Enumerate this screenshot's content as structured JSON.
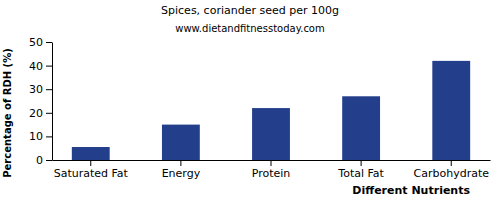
{
  "chart_data": {
    "type": "bar",
    "title": "Spices, coriander seed per 100g",
    "subtitle": "www.dietandfitnesstoday.com",
    "xlabel": "Different Nutrients",
    "ylabel": "Percentage of RDH (%)",
    "categories": [
      "Saturated Fat",
      "Energy",
      "Protein",
      "Total Fat",
      "Carbohydrate"
    ],
    "values": [
      5.5,
      15,
      22,
      27,
      42
    ],
    "color": "#233e8b",
    "ylim": [
      0,
      50
    ],
    "yticks": [
      0,
      10,
      20,
      30,
      40,
      50
    ],
    "grid": false
  }
}
